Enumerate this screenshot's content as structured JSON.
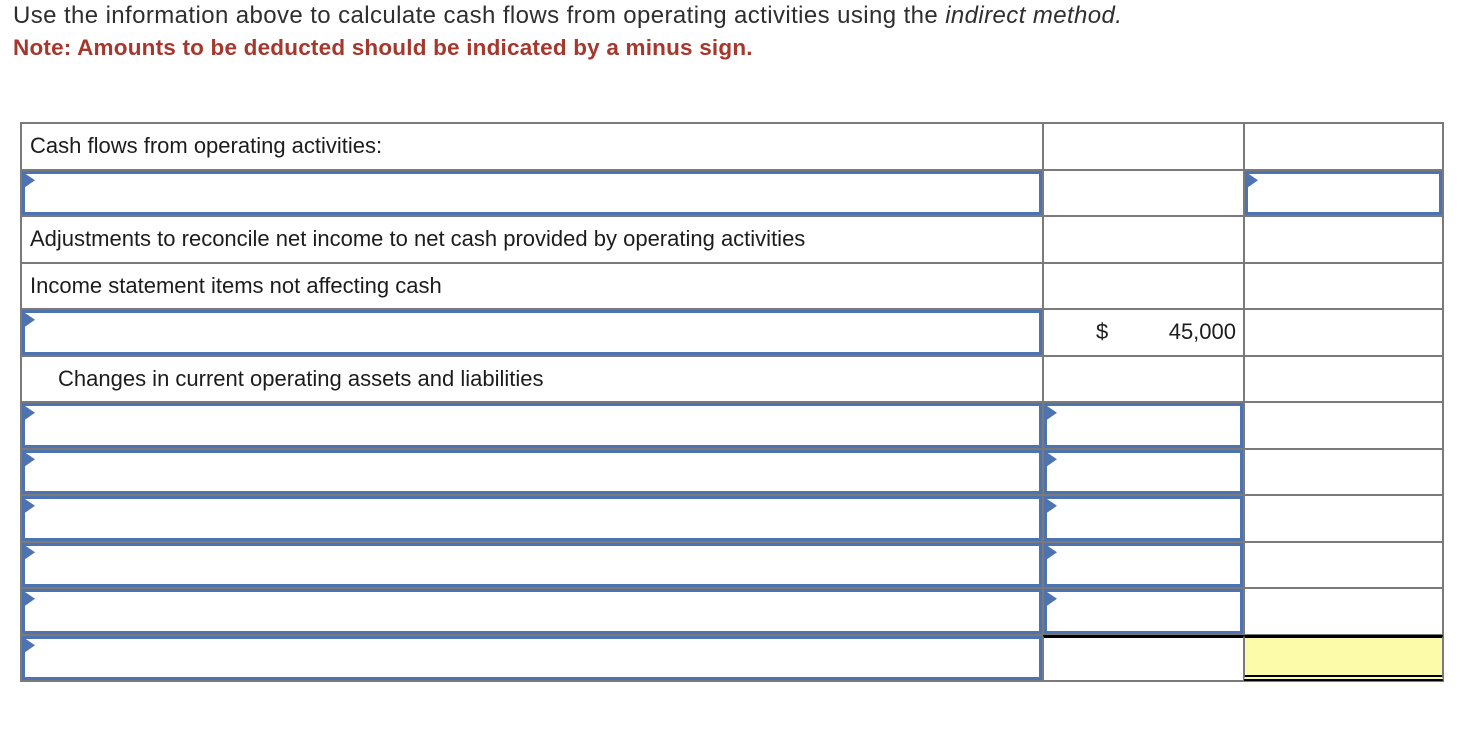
{
  "header": {
    "instruction_prefix": "Use the information above to calculate cash flows from operating activities using the ",
    "instruction_italic": "indirect method.",
    "note": "Note: Amounts to be deducted should be indicated by a minus sign."
  },
  "table": {
    "labels": {
      "section_title": "Cash flows from operating activities:",
      "adjustments": "Adjustments to reconcile net income to net cash provided by operating activities",
      "income_items": "Income statement items not affecting cash",
      "changes": "Changes in current operating assets and liabilities"
    },
    "values": {
      "currency": "$",
      "amount": "45,000"
    }
  },
  "colors": {
    "input_border_blue": "#4d74b0",
    "note_red": "#a5372c",
    "highlight_yellow": "#fbfba9",
    "grid_gray": "#7a7a7a"
  }
}
